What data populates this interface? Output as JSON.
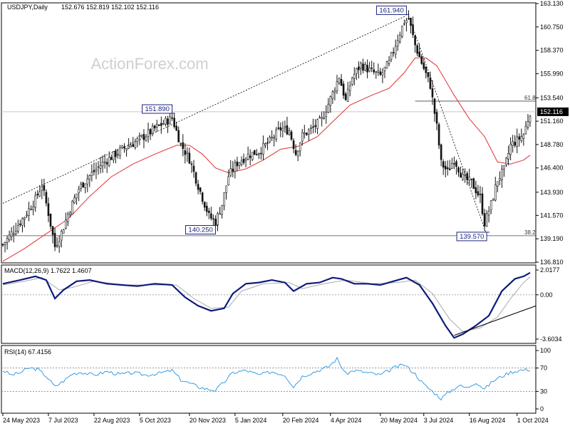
{
  "chart_data": [
    {
      "panel": "price",
      "type": "candlestick",
      "title": "USDJPY,Daily",
      "ohlc_label": "152.676 152.819 152.102 152.116",
      "watermark": "ActionForex.com",
      "ylim": [
        136.81,
        163.13
      ],
      "yticks": [
        "163.130",
        "160.750",
        "158.370",
        "155.990",
        "153.540",
        "151.160",
        "148.780",
        "146.400",
        "143.930",
        "141.570",
        "139.190",
        "136.810"
      ],
      "current_price": "152.116",
      "close_series": [
        {
          "i": 0,
          "v": 138.6
        },
        {
          "i": 5,
          "v": 140.0
        },
        {
          "i": 10,
          "v": 141.5
        },
        {
          "i": 15,
          "v": 143.2
        },
        {
          "i": 18,
          "v": 144.7
        },
        {
          "i": 21,
          "v": 141.8
        },
        {
          "i": 24,
          "v": 138.4
        },
        {
          "i": 27,
          "v": 139.8
        },
        {
          "i": 30,
          "v": 141.7
        },
        {
          "i": 35,
          "v": 144.3
        },
        {
          "i": 40,
          "v": 145.6
        },
        {
          "i": 45,
          "v": 146.7
        },
        {
          "i": 50,
          "v": 147.5
        },
        {
          "i": 55,
          "v": 148.3
        },
        {
          "i": 60,
          "v": 148.9
        },
        {
          "i": 65,
          "v": 149.6
        },
        {
          "i": 70,
          "v": 150.4
        },
        {
          "i": 75,
          "v": 151.1
        },
        {
          "i": 78,
          "v": 151.5
        },
        {
          "i": 82,
          "v": 148.8
        },
        {
          "i": 86,
          "v": 147.3
        },
        {
          "i": 90,
          "v": 144.6
        },
        {
          "i": 95,
          "v": 141.5
        },
        {
          "i": 98,
          "v": 140.9
        },
        {
          "i": 101,
          "v": 142.7
        },
        {
          "i": 104,
          "v": 145.6
        },
        {
          "i": 108,
          "v": 146.9
        },
        {
          "i": 113,
          "v": 147.7
        },
        {
          "i": 118,
          "v": 148.1
        },
        {
          "i": 123,
          "v": 149.1
        },
        {
          "i": 128,
          "v": 150.4
        },
        {
          "i": 132,
          "v": 150.2
        },
        {
          "i": 135,
          "v": 147.9
        },
        {
          "i": 138,
          "v": 149.7
        },
        {
          "i": 142,
          "v": 150.3
        },
        {
          "i": 147,
          "v": 151.3
        },
        {
          "i": 152,
          "v": 154.0
        },
        {
          "i": 155,
          "v": 155.7
        },
        {
          "i": 158,
          "v": 153.2
        },
        {
          "i": 161,
          "v": 155.6
        },
        {
          "i": 165,
          "v": 156.9
        },
        {
          "i": 170,
          "v": 156.2
        },
        {
          "i": 174,
          "v": 155.8
        },
        {
          "i": 178,
          "v": 157.1
        },
        {
          "i": 182,
          "v": 159.6
        },
        {
          "i": 185,
          "v": 161.3
        },
        {
          "i": 187,
          "v": 161.6
        },
        {
          "i": 190,
          "v": 158.9
        },
        {
          "i": 193,
          "v": 157.1
        },
        {
          "i": 197,
          "v": 154.8
        },
        {
          "i": 200,
          "v": 150.6
        },
        {
          "i": 202,
          "v": 146.9
        },
        {
          "i": 205,
          "v": 146.0
        },
        {
          "i": 208,
          "v": 147.3
        },
        {
          "i": 212,
          "v": 145.4
        },
        {
          "i": 216,
          "v": 144.9
        },
        {
          "i": 220,
          "v": 143.4
        },
        {
          "i": 222,
          "v": 140.8
        },
        {
          "i": 225,
          "v": 142.7
        },
        {
          "i": 228,
          "v": 145.2
        },
        {
          "i": 231,
          "v": 146.2
        },
        {
          "i": 234,
          "v": 148.7
        },
        {
          "i": 237,
          "v": 149.2
        },
        {
          "i": 240,
          "v": 149.8
        },
        {
          "i": 243,
          "v": 152.1
        }
      ],
      "ma_series": [
        {
          "i": 0,
          "v": 136.9
        },
        {
          "i": 10,
          "v": 138.2
        },
        {
          "i": 20,
          "v": 139.7
        },
        {
          "i": 30,
          "v": 141.2
        },
        {
          "i": 40,
          "v": 143.5
        },
        {
          "i": 50,
          "v": 145.5
        },
        {
          "i": 60,
          "v": 146.8
        },
        {
          "i": 70,
          "v": 147.8
        },
        {
          "i": 80,
          "v": 148.7
        },
        {
          "i": 86,
          "v": 148.7
        },
        {
          "i": 92,
          "v": 147.8
        },
        {
          "i": 98,
          "v": 146.4
        },
        {
          "i": 104,
          "v": 145.9
        },
        {
          "i": 112,
          "v": 146.3
        },
        {
          "i": 120,
          "v": 147.2
        },
        {
          "i": 128,
          "v": 148.3
        },
        {
          "i": 136,
          "v": 148.6
        },
        {
          "i": 145,
          "v": 149.6
        },
        {
          "i": 152,
          "v": 151.1
        },
        {
          "i": 160,
          "v": 152.8
        },
        {
          "i": 170,
          "v": 153.8
        },
        {
          "i": 178,
          "v": 154.5
        },
        {
          "i": 185,
          "v": 156.1
        },
        {
          "i": 190,
          "v": 157.6
        },
        {
          "i": 195,
          "v": 157.6
        },
        {
          "i": 200,
          "v": 156.8
        },
        {
          "i": 208,
          "v": 153.8
        },
        {
          "i": 215,
          "v": 151.4
        },
        {
          "i": 222,
          "v": 149.6
        },
        {
          "i": 228,
          "v": 147.0
        },
        {
          "i": 234,
          "v": 146.8
        },
        {
          "i": 240,
          "v": 147.2
        },
        {
          "i": 243,
          "v": 147.7
        }
      ],
      "annotations": [
        {
          "label": "151.890",
          "i": 78,
          "v": 151.89
        },
        {
          "label": "140.250",
          "i": 98,
          "v": 140.25
        },
        {
          "label": "161.940",
          "i": 186,
          "v": 161.94
        },
        {
          "label": "139.570",
          "i": 223,
          "v": 139.57
        }
      ],
      "trendline": {
        "from": {
          "i": 0,
          "v": 142.8
        },
        "to": {
          "i": 186,
          "v": 161.9
        }
      },
      "fib_levels": [
        {
          "label": "61.8",
          "v": 153.2,
          "from_i": 190
        },
        {
          "label": "38.2",
          "v": 139.5,
          "from_i": 0
        }
      ],
      "fib_diagonal": {
        "from": {
          "i": 187,
          "v": 161.9
        },
        "to": {
          "i": 223,
          "v": 139.6
        }
      },
      "colors": {
        "candle": "#111111",
        "ma": "#e03030",
        "grid": "#bbbbbb",
        "label_border": "#1a237e",
        "label_text": "#1a237e",
        "watermark": "#cfcfcf"
      }
    },
    {
      "panel": "macd",
      "type": "line",
      "label": "MACD(12,26,9) 1.7622 1.4607",
      "ylim": [
        -3.6034,
        2.0177
      ],
      "yticks": [
        "2.0177",
        "0.00",
        "-3.6034"
      ],
      "zero": 0,
      "macd_series": [
        {
          "i": 0,
          "v": 0.9
        },
        {
          "i": 8,
          "v": 1.2
        },
        {
          "i": 15,
          "v": 1.5
        },
        {
          "i": 20,
          "v": 1.2
        },
        {
          "i": 24,
          "v": -0.3
        },
        {
          "i": 28,
          "v": 0.4
        },
        {
          "i": 34,
          "v": 1.1
        },
        {
          "i": 40,
          "v": 1.2
        },
        {
          "i": 48,
          "v": 0.9
        },
        {
          "i": 55,
          "v": 0.8
        },
        {
          "i": 62,
          "v": 0.7
        },
        {
          "i": 70,
          "v": 0.9
        },
        {
          "i": 78,
          "v": 0.8
        },
        {
          "i": 84,
          "v": -0.2
        },
        {
          "i": 90,
          "v": -0.9
        },
        {
          "i": 96,
          "v": -1.3
        },
        {
          "i": 102,
          "v": -1.1
        },
        {
          "i": 106,
          "v": 0.1
        },
        {
          "i": 112,
          "v": 0.9
        },
        {
          "i": 118,
          "v": 1.0
        },
        {
          "i": 124,
          "v": 1.2
        },
        {
          "i": 130,
          "v": 1.0
        },
        {
          "i": 134,
          "v": 0.3
        },
        {
          "i": 140,
          "v": 0.9
        },
        {
          "i": 146,
          "v": 1.0
        },
        {
          "i": 152,
          "v": 1.4
        },
        {
          "i": 156,
          "v": 1.3
        },
        {
          "i": 162,
          "v": 0.9
        },
        {
          "i": 168,
          "v": 0.9
        },
        {
          "i": 174,
          "v": 0.8
        },
        {
          "i": 180,
          "v": 1.1
        },
        {
          "i": 186,
          "v": 1.4
        },
        {
          "i": 192,
          "v": 0.8
        },
        {
          "i": 198,
          "v": -0.7
        },
        {
          "i": 204,
          "v": -2.5
        },
        {
          "i": 208,
          "v": -3.5
        },
        {
          "i": 212,
          "v": -3.2
        },
        {
          "i": 218,
          "v": -2.5
        },
        {
          "i": 224,
          "v": -1.7
        },
        {
          "i": 230,
          "v": 0.3
        },
        {
          "i": 236,
          "v": 1.3
        },
        {
          "i": 240,
          "v": 1.5
        },
        {
          "i": 243,
          "v": 1.8
        }
      ],
      "signal_series": [
        {
          "i": 0,
          "v": 0.8
        },
        {
          "i": 10,
          "v": 1.1
        },
        {
          "i": 18,
          "v": 1.4
        },
        {
          "i": 26,
          "v": 0.4
        },
        {
          "i": 32,
          "v": 0.6
        },
        {
          "i": 42,
          "v": 1.1
        },
        {
          "i": 56,
          "v": 0.8
        },
        {
          "i": 70,
          "v": 0.8
        },
        {
          "i": 80,
          "v": 0.8
        },
        {
          "i": 88,
          "v": -0.3
        },
        {
          "i": 96,
          "v": -1.1
        },
        {
          "i": 104,
          "v": -1.0
        },
        {
          "i": 110,
          "v": 0.3
        },
        {
          "i": 120,
          "v": 0.9
        },
        {
          "i": 132,
          "v": 1.0
        },
        {
          "i": 138,
          "v": 0.5
        },
        {
          "i": 148,
          "v": 0.9
        },
        {
          "i": 158,
          "v": 1.2
        },
        {
          "i": 170,
          "v": 0.9
        },
        {
          "i": 182,
          "v": 1.0
        },
        {
          "i": 190,
          "v": 1.2
        },
        {
          "i": 198,
          "v": 0.1
        },
        {
          "i": 206,
          "v": -2.0
        },
        {
          "i": 212,
          "v": -3.0
        },
        {
          "i": 220,
          "v": -2.7
        },
        {
          "i": 228,
          "v": -1.8
        },
        {
          "i": 234,
          "v": -0.3
        },
        {
          "i": 240,
          "v": 1.0
        },
        {
          "i": 243,
          "v": 1.46
        }
      ],
      "divergence_line": {
        "from": {
          "i": 208,
          "v": -3.3
        },
        "to": {
          "i": 246,
          "v": -0.9
        }
      },
      "colors": {
        "macd": "#0d1b7a",
        "signal": "#aaaaaa",
        "zero": "#999999"
      }
    },
    {
      "panel": "rsi",
      "type": "line",
      "label": "RSI(14) 67.4156",
      "ylim": [
        0,
        100
      ],
      "yticks": [
        "100",
        "70",
        "30",
        "0"
      ],
      "levels": [
        70,
        30
      ],
      "rsi_series": [
        {
          "i": 0,
          "v": 66
        },
        {
          "i": 4,
          "v": 58
        },
        {
          "i": 8,
          "v": 62
        },
        {
          "i": 12,
          "v": 70
        },
        {
          "i": 16,
          "v": 68
        },
        {
          "i": 20,
          "v": 56
        },
        {
          "i": 24,
          "v": 38
        },
        {
          "i": 28,
          "v": 48
        },
        {
          "i": 32,
          "v": 60
        },
        {
          "i": 36,
          "v": 63
        },
        {
          "i": 42,
          "v": 58
        },
        {
          "i": 48,
          "v": 64
        },
        {
          "i": 54,
          "v": 59
        },
        {
          "i": 60,
          "v": 62
        },
        {
          "i": 66,
          "v": 58
        },
        {
          "i": 72,
          "v": 61
        },
        {
          "i": 78,
          "v": 66
        },
        {
          "i": 82,
          "v": 50
        },
        {
          "i": 86,
          "v": 44
        },
        {
          "i": 90,
          "v": 38
        },
        {
          "i": 94,
          "v": 34
        },
        {
          "i": 98,
          "v": 32
        },
        {
          "i": 102,
          "v": 46
        },
        {
          "i": 106,
          "v": 62
        },
        {
          "i": 112,
          "v": 66
        },
        {
          "i": 118,
          "v": 58
        },
        {
          "i": 124,
          "v": 64
        },
        {
          "i": 130,
          "v": 58
        },
        {
          "i": 134,
          "v": 38
        },
        {
          "i": 138,
          "v": 56
        },
        {
          "i": 144,
          "v": 64
        },
        {
          "i": 150,
          "v": 72
        },
        {
          "i": 154,
          "v": 86
        },
        {
          "i": 158,
          "v": 60
        },
        {
          "i": 162,
          "v": 66
        },
        {
          "i": 168,
          "v": 62
        },
        {
          "i": 174,
          "v": 58
        },
        {
          "i": 180,
          "v": 70
        },
        {
          "i": 185,
          "v": 76
        },
        {
          "i": 190,
          "v": 60
        },
        {
          "i": 194,
          "v": 42
        },
        {
          "i": 198,
          "v": 30
        },
        {
          "i": 202,
          "v": 18
        },
        {
          "i": 206,
          "v": 30
        },
        {
          "i": 210,
          "v": 40
        },
        {
          "i": 214,
          "v": 36
        },
        {
          "i": 218,
          "v": 46
        },
        {
          "i": 222,
          "v": 34
        },
        {
          "i": 226,
          "v": 48
        },
        {
          "i": 230,
          "v": 56
        },
        {
          "i": 234,
          "v": 63
        },
        {
          "i": 238,
          "v": 66
        },
        {
          "i": 243,
          "v": 67.4
        }
      ],
      "colors": {
        "rsi": "#3a9ee0",
        "level": "#777777"
      }
    }
  ],
  "x_axis": {
    "bars": 244,
    "labels": [
      {
        "label": "24 May 2023",
        "i": 0
      },
      {
        "label": "7 Jul 2023",
        "i": 21
      },
      {
        "label": "22 Aug 2023",
        "i": 42
      },
      {
        "label": "5 Oct 2023",
        "i": 63
      },
      {
        "label": "20 Nov 2023",
        "i": 86
      },
      {
        "label": "5 Jan 2024",
        "i": 107
      },
      {
        "label": "20 Feb 2024",
        "i": 129
      },
      {
        "label": "4 Apr 2024",
        "i": 151
      },
      {
        "label": "20 May 2024",
        "i": 174
      },
      {
        "label": "3 Jul 2024",
        "i": 194
      },
      {
        "label": "16 Aug 2024",
        "i": 215
      },
      {
        "label": "1 Oct 2024",
        "i": 237
      }
    ]
  }
}
